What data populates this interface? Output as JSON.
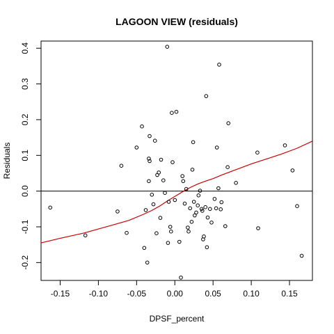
{
  "chart_data": {
    "type": "scatter",
    "title": "LAGOON VIEW (residuals)",
    "xlabel": "DPSF_percent",
    "ylabel": "Residuals",
    "xlim": [
      -0.175,
      0.18
    ],
    "ylim": [
      -0.25,
      0.42
    ],
    "x_ticks": [
      {
        "value": -0.15,
        "label": "-0.15"
      },
      {
        "value": -0.1,
        "label": "-0.10"
      },
      {
        "value": -0.05,
        "label": "-0.05"
      },
      {
        "value": 0.0,
        "label": "0.00"
      },
      {
        "value": 0.05,
        "label": "0.05"
      },
      {
        "value": 0.1,
        "label": "0.10"
      },
      {
        "value": 0.15,
        "label": "0.15"
      }
    ],
    "y_ticks": [
      {
        "value": -0.2,
        "label": "-0.2"
      },
      {
        "value": -0.1,
        "label": "-0.1"
      },
      {
        "value": 0.0,
        "label": "0.0"
      },
      {
        "value": 0.1,
        "label": "0.1"
      },
      {
        "value": 0.2,
        "label": "0.2"
      },
      {
        "value": 0.3,
        "label": "0.3"
      },
      {
        "value": 0.4,
        "label": "0.4"
      }
    ],
    "reference_line": {
      "y": 0.0,
      "color": "#000000"
    },
    "trend_line": {
      "color": "#cc0000",
      "points": [
        [
          -0.175,
          -0.145
        ],
        [
          -0.15,
          -0.132
        ],
        [
          -0.12,
          -0.118
        ],
        [
          -0.1,
          -0.106
        ],
        [
          -0.08,
          -0.094
        ],
        [
          -0.06,
          -0.082
        ],
        [
          -0.04,
          -0.064
        ],
        [
          -0.03,
          -0.054
        ],
        [
          -0.02,
          -0.042
        ],
        [
          -0.01,
          -0.028
        ],
        [
          0.0,
          -0.015
        ],
        [
          0.01,
          -0.002
        ],
        [
          0.02,
          0.01
        ],
        [
          0.03,
          0.02
        ],
        [
          0.04,
          0.028
        ],
        [
          0.05,
          0.035
        ],
        [
          0.06,
          0.044
        ],
        [
          0.08,
          0.06
        ],
        [
          0.1,
          0.076
        ],
        [
          0.12,
          0.09
        ],
        [
          0.14,
          0.104
        ],
        [
          0.16,
          0.12
        ],
        [
          0.18,
          0.14
        ]
      ]
    },
    "points": [
      {
        "x": -0.163,
        "y": -0.046
      },
      {
        "x": -0.117,
        "y": -0.124
      },
      {
        "x": -0.075,
        "y": -0.057
      },
      {
        "x": -0.07,
        "y": 0.071
      },
      {
        "x": -0.063,
        "y": -0.117
      },
      {
        "x": -0.05,
        "y": 0.122
      },
      {
        "x": -0.043,
        "y": 0.181
      },
      {
        "x": -0.04,
        "y": -0.159
      },
      {
        "x": -0.038,
        "y": -0.053
      },
      {
        "x": -0.036,
        "y": -0.2
      },
      {
        "x": -0.034,
        "y": 0.091
      },
      {
        "x": -0.033,
        "y": 0.154
      },
      {
        "x": -0.033,
        "y": 0.084
      },
      {
        "x": -0.034,
        "y": 0.028
      },
      {
        "x": -0.03,
        "y": -0.01
      },
      {
        "x": -0.028,
        "y": -0.037
      },
      {
        "x": -0.026,
        "y": 0.141
      },
      {
        "x": -0.024,
        "y": -0.118
      },
      {
        "x": -0.023,
        "y": 0.045
      },
      {
        "x": -0.021,
        "y": 0.052
      },
      {
        "x": -0.019,
        "y": -0.075
      },
      {
        "x": -0.018,
        "y": 0.088
      },
      {
        "x": -0.015,
        "y": 0.03
      },
      {
        "x": -0.013,
        "y": -0.005
      },
      {
        "x": -0.01,
        "y": 0.404
      },
      {
        "x": -0.009,
        "y": -0.145
      },
      {
        "x": -0.008,
        "y": -0.03
      },
      {
        "x": -0.006,
        "y": -0.1
      },
      {
        "x": -0.005,
        "y": -0.113
      },
      {
        "x": -0.003,
        "y": 0.081
      },
      {
        "x": -0.004,
        "y": 0.219
      },
      {
        "x": 0.0,
        "y": -0.025
      },
      {
        "x": 0.002,
        "y": 0.222
      },
      {
        "x": 0.006,
        "y": -0.142
      },
      {
        "x": 0.008,
        "y": -0.242
      },
      {
        "x": 0.01,
        "y": 0.042
      },
      {
        "x": 0.011,
        "y": 0.028
      },
      {
        "x": 0.013,
        "y": -0.035
      },
      {
        "x": 0.015,
        "y": 0.006
      },
      {
        "x": 0.017,
        "y": -0.102
      },
      {
        "x": 0.018,
        "y": -0.113
      },
      {
        "x": 0.02,
        "y": -0.048
      },
      {
        "x": 0.022,
        "y": -0.086
      },
      {
        "x": 0.023,
        "y": 0.06
      },
      {
        "x": 0.024,
        "y": 0.137
      },
      {
        "x": 0.025,
        "y": -0.03
      },
      {
        "x": 0.026,
        "y": -0.068
      },
      {
        "x": 0.028,
        "y": -0.06
      },
      {
        "x": 0.03,
        "y": -0.04
      },
      {
        "x": 0.031,
        "y": -0.012
      },
      {
        "x": 0.033,
        "y": 0.001
      },
      {
        "x": 0.035,
        "y": -0.05
      },
      {
        "x": 0.036,
        "y": -0.055
      },
      {
        "x": 0.037,
        "y": -0.135
      },
      {
        "x": 0.038,
        "y": -0.127
      },
      {
        "x": 0.04,
        "y": -0.045
      },
      {
        "x": 0.041,
        "y": 0.266
      },
      {
        "x": 0.042,
        "y": -0.157
      },
      {
        "x": 0.043,
        "y": -0.074
      },
      {
        "x": 0.046,
        "y": -0.05
      },
      {
        "x": 0.048,
        "y": -0.088
      },
      {
        "x": 0.052,
        "y": -0.022
      },
      {
        "x": 0.054,
        "y": -0.048
      },
      {
        "x": 0.055,
        "y": 0.122
      },
      {
        "x": 0.057,
        "y": 0.008
      },
      {
        "x": 0.058,
        "y": 0.354
      },
      {
        "x": 0.06,
        "y": -0.051
      },
      {
        "x": 0.061,
        "y": -0.031
      },
      {
        "x": 0.066,
        "y": -0.098
      },
      {
        "x": 0.069,
        "y": 0.067
      },
      {
        "x": 0.07,
        "y": 0.19
      },
      {
        "x": 0.08,
        "y": 0.023
      },
      {
        "x": 0.108,
        "y": 0.108
      },
      {
        "x": 0.109,
        "y": -0.104
      },
      {
        "x": 0.144,
        "y": 0.128
      },
      {
        "x": 0.154,
        "y": 0.058
      },
      {
        "x": 0.16,
        "y": -0.042
      },
      {
        "x": 0.166,
        "y": -0.181
      }
    ]
  }
}
